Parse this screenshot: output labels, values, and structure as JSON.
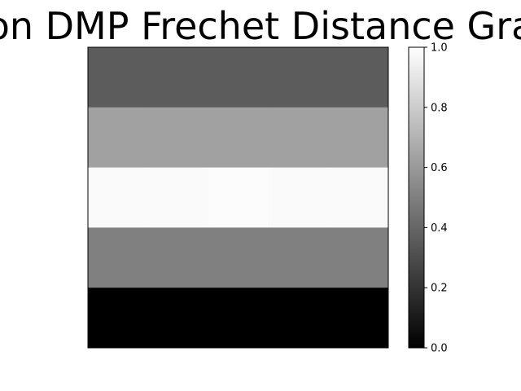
{
  "chart_data": {
    "type": "heatmap",
    "title": "on DMP Frechet Distance Gra",
    "xlabel": "",
    "ylabel": "",
    "colormap": "gray",
    "rows": [
      [
        0.36,
        0.36,
        0.36,
        0.36,
        0.36
      ],
      [
        0.63,
        0.63,
        0.63,
        0.63,
        0.63
      ],
      [
        0.98,
        0.98,
        0.99,
        0.98,
        0.98
      ],
      [
        0.5,
        0.5,
        0.5,
        0.5,
        0.5
      ],
      [
        0.0,
        0.0,
        0.0,
        0.0,
        0.0
      ]
    ],
    "colorbar": {
      "range": [
        0.0,
        1.0
      ],
      "ticks": [
        "0.0",
        "0.2",
        "0.4",
        "0.6",
        "0.8",
        "1.0"
      ]
    },
    "x_ticks_visible": false,
    "y_ticks_visible": false
  }
}
